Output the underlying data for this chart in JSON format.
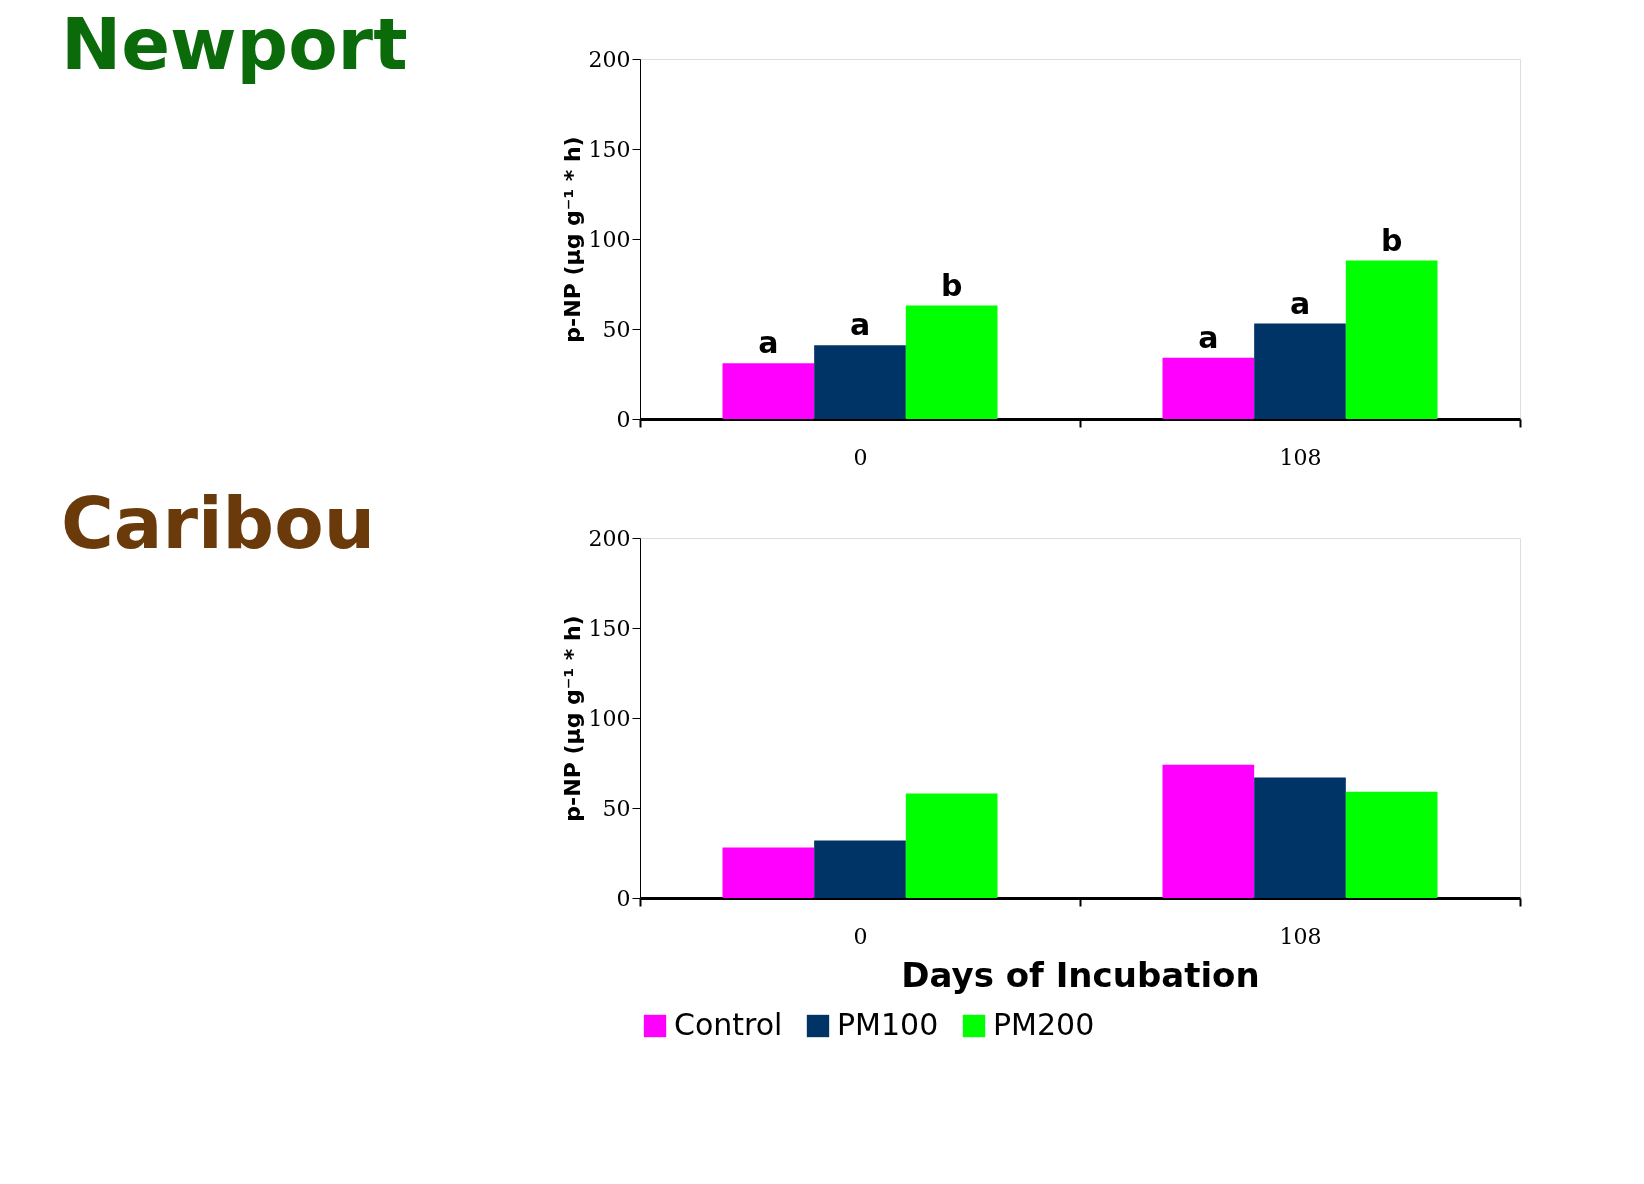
{
  "chart_data": [
    {
      "type": "bar",
      "title": "Newport",
      "ylabel": "p-NP (µg g⁻¹ * h)",
      "categories": [
        "0",
        "108"
      ],
      "ylim": [
        0,
        200
      ],
      "yticks": [
        0,
        50,
        100,
        150,
        200
      ],
      "legend": "bottom",
      "series": [
        {
          "name": "Control",
          "color": "#ff00ff",
          "values": [
            31,
            34
          ]
        },
        {
          "name": "PM100",
          "color": "#003366",
          "values": [
            41,
            53
          ]
        },
        {
          "name": "PM200",
          "color": "#00ff00",
          "values": [
            63,
            88
          ]
        }
      ],
      "annotations": [
        "a",
        "a",
        "b",
        "a",
        "a",
        "b"
      ]
    },
    {
      "type": "bar",
      "title": "Caribou",
      "xlabel": "Days of Incubation",
      "ylabel": "p-NP (µg g⁻¹ * h)",
      "categories": [
        "0",
        "108"
      ],
      "ylim": [
        0,
        200
      ],
      "yticks": [
        0,
        50,
        100,
        150,
        200
      ],
      "legend": "bottom",
      "series": [
        {
          "name": "Control",
          "color": "#ff00ff",
          "values": [
            28,
            74
          ]
        },
        {
          "name": "PM100",
          "color": "#003366",
          "values": [
            32,
            67
          ]
        },
        {
          "name": "PM200",
          "color": "#00ff00",
          "values": [
            58,
            59
          ]
        }
      ]
    }
  ]
}
